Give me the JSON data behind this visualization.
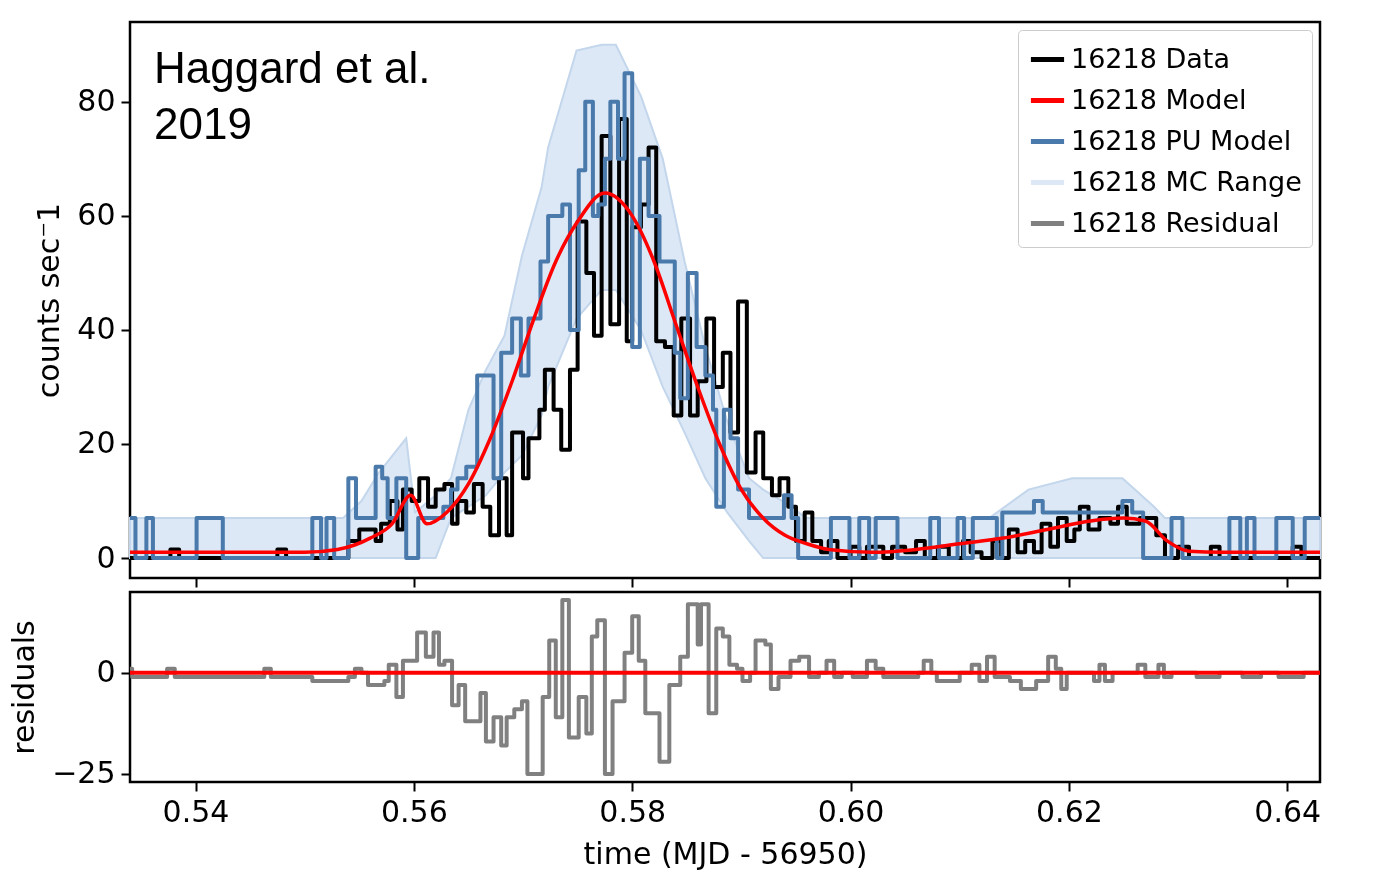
{
  "chart_data": [
    {
      "type": "line",
      "ylabel": "counts sec⁻1",
      "xlim": [
        0.534,
        0.643
      ],
      "ylim": [
        -3.5,
        94
      ],
      "xticks": [
        0.54,
        0.56,
        0.58,
        0.6,
        0.62,
        0.64
      ],
      "yticks": [
        0,
        20,
        40,
        60,
        80
      ],
      "tick_labels": "y",
      "legend": "top right",
      "annotations": [
        "Haggard et al.\n2019"
      ],
      "series": [
        {
          "name": "16218 Data",
          "type": "step",
          "color": "#000000",
          "x": [
            0.534,
            0.5377,
            0.5385,
            0.5475,
            0.5483,
            0.554,
            0.555,
            0.5565,
            0.557,
            0.5578,
            0.5585,
            0.559,
            0.5598,
            0.5605,
            0.5613,
            0.562,
            0.5628,
            0.5635,
            0.564,
            0.5648,
            0.5655,
            0.5663,
            0.567,
            0.5678,
            0.5685,
            0.569,
            0.57,
            0.5705,
            0.5715,
            0.572,
            0.5728,
            0.5735,
            0.5743,
            0.575,
            0.5758,
            0.5765,
            0.5772,
            0.578,
            0.5788,
            0.5795,
            0.58,
            0.5808,
            0.5815,
            0.5822,
            0.583,
            0.5838,
            0.5845,
            0.5853,
            0.586,
            0.5868,
            0.5875,
            0.5883,
            0.589,
            0.5897,
            0.5905,
            0.5913,
            0.592,
            0.5928,
            0.5935,
            0.5943,
            0.595,
            0.5958,
            0.5965,
            0.5973,
            0.598,
            0.5988,
            0.6,
            0.6008,
            0.6015,
            0.603,
            0.6038,
            0.605,
            0.606,
            0.6068,
            0.608,
            0.609,
            0.6103,
            0.611,
            0.612,
            0.613,
            0.6138,
            0.6145,
            0.6153,
            0.616,
            0.6168,
            0.6175,
            0.6183,
            0.619,
            0.6198,
            0.6205,
            0.621,
            0.6218,
            0.6228,
            0.6238,
            0.6245,
            0.6253,
            0.6265,
            0.628,
            0.6288,
            0.63,
            0.631,
            0.633,
            0.6338,
            0.6405,
            0.6413,
            0.643
          ],
          "values": [
            0,
            1.5,
            0,
            1.5,
            0,
            3,
            5,
            3,
            6,
            10,
            5,
            12,
            10,
            14,
            9,
            12,
            13,
            6,
            10,
            8,
            13,
            9,
            4,
            14,
            4,
            22,
            14,
            21,
            26,
            33,
            26,
            19,
            33,
            59,
            50,
            39,
            74,
            41,
            77,
            38,
            58,
            62,
            72,
            38,
            37,
            25,
            42,
            25,
            31,
            42,
            30,
            36,
            22,
            45,
            15,
            22,
            14,
            11,
            14,
            9,
            3,
            8,
            3,
            1,
            3,
            0,
            2,
            0,
            2,
            0,
            2,
            1,
            3,
            0,
            2,
            0,
            3,
            1,
            0,
            3,
            0,
            5,
            1,
            3,
            1,
            6,
            2,
            7,
            3,
            5,
            9,
            5,
            7,
            6,
            9,
            6,
            7,
            4,
            0,
            2,
            0,
            2,
            0,
            2,
            0,
            0
          ]
        },
        {
          "name": "16218 Model",
          "type": "line",
          "color": "#ff0000",
          "x": [
            0.534,
            0.55,
            0.553,
            0.556,
            0.558,
            0.5597,
            0.5612,
            0.563,
            0.565,
            0.567,
            0.569,
            0.571,
            0.573,
            0.575,
            0.5775,
            0.58,
            0.582,
            0.584,
            0.586,
            0.588,
            0.59,
            0.592,
            0.594,
            0.596,
            0.598,
            0.602,
            0.606,
            0.61,
            0.614,
            0.618,
            0.622,
            0.625,
            0.627,
            0.629,
            0.631,
            0.634,
            0.643
          ],
          "values": [
            1,
            1,
            1.5,
            3.5,
            6,
            11,
            6,
            8,
            13,
            21,
            31,
            42,
            52,
            59,
            64,
            60,
            52,
            41,
            30,
            20,
            12,
            7,
            4,
            2.5,
            1.5,
            1,
            1.5,
            2.5,
            3.5,
            5,
            6.5,
            7,
            6.5,
            3,
            1.2,
            1,
            1
          ]
        },
        {
          "name": "16218 PU Model",
          "type": "step",
          "color": "#4a7aab",
          "x": [
            0.534,
            0.5345,
            0.5355,
            0.5361,
            0.5401,
            0.5425,
            0.5507,
            0.5515,
            0.552,
            0.5527,
            0.554,
            0.5547,
            0.5565,
            0.5571,
            0.5576,
            0.5584,
            0.5593,
            0.5604,
            0.5627,
            0.5634,
            0.564,
            0.5648,
            0.5658,
            0.5673,
            0.568,
            0.569,
            0.5698,
            0.5705,
            0.5716,
            0.5723,
            0.5736,
            0.5743,
            0.5751,
            0.5757,
            0.5764,
            0.5769,
            0.5775,
            0.578,
            0.5787,
            0.5793,
            0.58,
            0.5807,
            0.5815,
            0.5825,
            0.5839,
            0.5844,
            0.5851,
            0.5859,
            0.5867,
            0.5874,
            0.5877,
            0.5884,
            0.589,
            0.5897,
            0.5907,
            0.5939,
            0.5946,
            0.5952,
            0.5982,
            0.5999,
            0.6008,
            0.6017,
            0.6023,
            0.6043,
            0.6073,
            0.6081,
            0.6098,
            0.6104,
            0.6112,
            0.6134,
            0.6139,
            0.6168,
            0.6176,
            0.6249,
            0.6258,
            0.6268,
            0.6294,
            0.6304,
            0.6347,
            0.6357,
            0.6363,
            0.637,
            0.639,
            0.6405,
            0.6416,
            0.643
          ],
          "values": [
            7,
            0,
            7,
            0,
            7,
            0,
            7,
            0,
            7,
            0,
            14,
            7,
            16,
            14,
            7,
            14,
            0,
            7,
            9,
            12,
            14,
            16,
            32,
            14,
            36,
            42,
            32,
            42,
            52,
            60,
            62,
            40,
            68,
            80,
            60,
            62,
            70,
            80,
            70,
            85,
            37,
            70,
            60,
            52,
            36,
            28,
            50,
            37,
            32,
            26,
            9,
            26,
            21,
            12,
            7,
            11,
            7,
            0,
            7,
            0,
            7,
            0,
            7,
            0,
            7,
            0,
            7,
            0,
            7,
            0,
            8,
            10,
            8,
            10,
            8,
            0,
            7,
            0,
            7,
            0,
            7,
            0,
            7,
            0,
            7,
            7
          ]
        },
        {
          "name": "16218 MC Range",
          "type": "area",
          "color": "#dce8f5",
          "x": [
            0.534,
            0.5535,
            0.5552,
            0.5568,
            0.5593,
            0.5601,
            0.562,
            0.5634,
            0.565,
            0.5666,
            0.5683,
            0.5699,
            0.5717,
            0.5723,
            0.5749,
            0.5772,
            0.5785,
            0.5808,
            0.5828,
            0.5848,
            0.5867,
            0.5887,
            0.5907,
            0.592,
            0.5946,
            0.5959,
            0.6127,
            0.6163,
            0.6203,
            0.6249,
            0.6278,
            0.6288,
            0.643
          ],
          "values": [
            null,
            null,
            null,
            null,
            null,
            null,
            null,
            null,
            null,
            null,
            null,
            null,
            null,
            null,
            null,
            null,
            null,
            null,
            null,
            null,
            null,
            null,
            null,
            null,
            null,
            null,
            null,
            null,
            null,
            null,
            null,
            null,
            null
          ],
          "lower": [
            0,
            0,
            0,
            0,
            0,
            0,
            0,
            7,
            9,
            11,
            15,
            18,
            25,
            30,
            42,
            47,
            47,
            40,
            30,
            22,
            14,
            8,
            3,
            0,
            0,
            0,
            0,
            0,
            0,
            0,
            0,
            0,
            0
          ],
          "upper": [
            7,
            7,
            10,
            15,
            21,
            8,
            11,
            14,
            26,
            33,
            39,
            53,
            65,
            72,
            89,
            90,
            90,
            81,
            70,
            52,
            37,
            24,
            14,
            12,
            9,
            7,
            7,
            12,
            14,
            14,
            9,
            7,
            7
          ]
        }
      ]
    },
    {
      "type": "line",
      "xlabel": "time (MJD - 56950)",
      "ylabel": "residuals",
      "xlim": [
        0.534,
        0.643
      ],
      "ylim": [
        -27,
        20
      ],
      "xticks": [
        0.54,
        0.56,
        0.58,
        {
          "value": 0.6,
          "label": "0.60"
        },
        0.62,
        0.64
      ],
      "yticks": [
        -25,
        0
      ],
      "ref_lines": [
        {
          "axis": "y",
          "value": 0,
          "color": "#ff0000"
        }
      ],
      "series": [
        {
          "name": "16218 Residual",
          "type": "step",
          "color": "#808080",
          "x": [
            0.534,
            0.5342,
            0.5374,
            0.5381,
            0.5463,
            0.5469,
            0.5507,
            0.5532,
            0.554,
            0.5546,
            0.5552,
            0.5558,
            0.5564,
            0.5573,
            0.5577,
            0.5584,
            0.559,
            0.5603,
            0.5611,
            0.5618,
            0.5623,
            0.5628,
            0.5635,
            0.5641,
            0.5647,
            0.5661,
            0.5666,
            0.5673,
            0.568,
            0.5685,
            0.5692,
            0.5699,
            0.5704,
            0.571,
            0.5718,
            0.5724,
            0.573,
            0.5736,
            0.5742,
            0.5751,
            0.5758,
            0.5763,
            0.5768,
            0.5775,
            0.5782,
            0.5787,
            0.5793,
            0.58,
            0.5806,
            0.5812,
            0.582,
            0.5825,
            0.5834,
            0.5844,
            0.5851,
            0.586,
            0.5863,
            0.587,
            0.5877,
            0.5883,
            0.5889,
            0.5896,
            0.5901,
            0.5908,
            0.5913,
            0.5922,
            0.5927,
            0.5934,
            0.5945,
            0.5953,
            0.5962,
            0.5971,
            0.5978,
            0.5985,
            0.5992,
            0.6002,
            0.6015,
            0.6023,
            0.603,
            0.6062,
            0.6067,
            0.6074,
            0.6079,
            0.61,
            0.6111,
            0.6118,
            0.6125,
            0.6132,
            0.6146,
            0.6156,
            0.6163,
            0.617,
            0.6181,
            0.6188,
            0.6193,
            0.6198,
            0.6223,
            0.6228,
            0.6233,
            0.624,
            0.6263,
            0.627,
            0.6282,
            0.6287,
            0.6294,
            0.6317,
            0.6338,
            0.6359,
            0.6376,
            0.6392,
            0.6415,
            0.643
          ],
          "values": [
            1,
            -1,
            1,
            -1,
            1,
            -1,
            -2,
            -2,
            -1,
            1,
            0,
            -3,
            -3,
            -2,
            2,
            -6,
            3,
            10,
            4,
            10,
            2,
            3,
            -8,
            -3,
            -12,
            -5,
            -17,
            -11,
            -18,
            -11,
            -9,
            -7,
            -25,
            -25,
            -6,
            8,
            -11,
            18,
            -16,
            -6,
            -15,
            9,
            13,
            -25,
            -7,
            -7,
            5,
            14,
            3,
            -10,
            -10,
            -22,
            -3,
            4,
            17,
            7,
            17,
            -10,
            11,
            9,
            2,
            1,
            -2,
            0,
            8,
            7,
            -4,
            -1,
            3,
            4,
            -1,
            0,
            3,
            -1,
            0,
            -1,
            3,
            1,
            -1,
            0,
            3,
            0,
            -2,
            0,
            2,
            -2,
            4,
            -1,
            -2,
            -4,
            -4,
            -2,
            4,
            1,
            -4,
            0,
            -2,
            2,
            -2,
            0,
            2,
            -1,
            2,
            -1,
            0,
            -1,
            0,
            -1,
            0,
            -1,
            0,
            0
          ]
        }
      ]
    }
  ]
}
